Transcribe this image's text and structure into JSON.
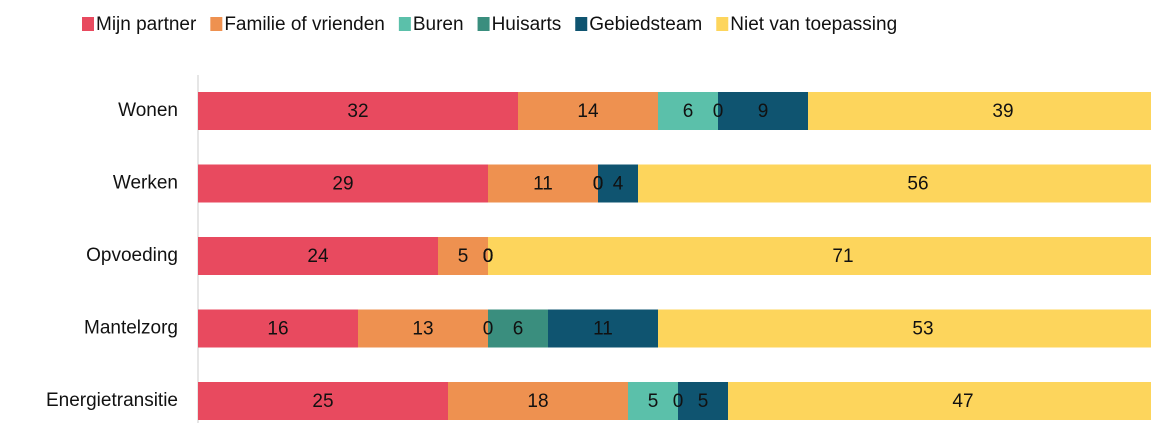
{
  "chart_data": {
    "type": "stacked-bar-horizontal",
    "categories": [
      "Wonen",
      "Werken",
      "Opvoeding",
      "Mantelzorg",
      "Energietransitie"
    ],
    "series": [
      {
        "name": "Mijn partner",
        "color": "#e84a5f",
        "values": [
          32,
          29,
          24,
          16,
          25
        ]
      },
      {
        "name": "Familie of vrienden",
        "color": "#ee9150",
        "values": [
          14,
          11,
          5,
          13,
          18
        ]
      },
      {
        "name": "Buren",
        "color": "#5bc0aa",
        "values": [
          6,
          0,
          0,
          0,
          5
        ]
      },
      {
        "name": "Huisarts",
        "color": "#3a8e7e",
        "values": [
          0,
          0,
          0,
          6,
          0
        ]
      },
      {
        "name": "Gebiedsteam",
        "color": "#0f5470",
        "values": [
          9,
          4,
          0,
          11,
          5
        ]
      },
      {
        "name": "Niet van toepassing",
        "color": "#fdd55c",
        "values": [
          39,
          56,
          71,
          53,
          47
        ]
      }
    ],
    "xlim": [
      0,
      100
    ],
    "legend": "top"
  }
}
